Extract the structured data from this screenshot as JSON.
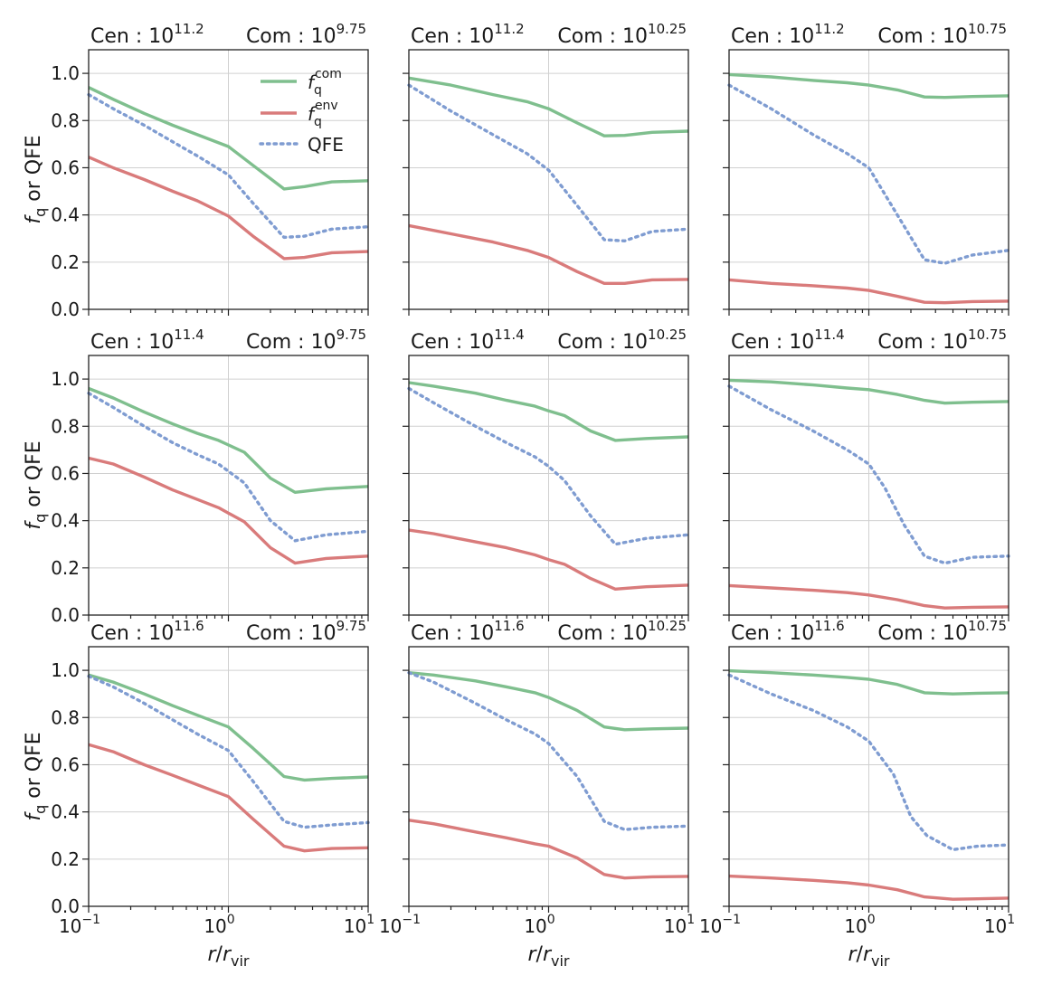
{
  "chart_data": {
    "type": "line",
    "title": "",
    "xlabel": "r/r_vir",
    "ylabel": "f_q or QFE",
    "xscale": "log",
    "xlim": [
      0.1,
      10
    ],
    "ylim": [
      0.0,
      1.1
    ],
    "x_tick_labels": [
      "10",
      "10",
      "10"
    ],
    "x_tick_exponents": [
      "−1",
      "0",
      "1"
    ],
    "y_tick_labels": [
      "0.0",
      "0.2",
      "0.4",
      "0.6",
      "0.8",
      "1.0"
    ],
    "grid": true,
    "legend_position": "top-right of first panel",
    "legend": [
      {
        "key": "fcom",
        "base": "f",
        "sub": "q",
        "sup": "com"
      },
      {
        "key": "fenv",
        "base": "f",
        "sub": "q",
        "sup": "env"
      },
      {
        "key": "qfe",
        "label": "QFE"
      }
    ],
    "series_styles": {
      "fcom": {
        "color": "#7fbf8e",
        "dash": "solid"
      },
      "fenv": {
        "color": "#d97b7b",
        "dash": "solid"
      },
      "qfe": {
        "color": "#7f9cd1",
        "dash": "dotted"
      }
    },
    "panels": [
      {
        "cen_text": "Cen : 10",
        "cen_exp": "11.2",
        "com_text": "Com : 10",
        "com_exp": "9.75",
        "series": {
          "fcom": {
            "x": [
              0.1,
              0.15,
              0.25,
              0.4,
              0.6,
              1.0,
              1.5,
              2.5,
              3.5,
              5.5,
              10
            ],
            "y": [
              0.94,
              0.89,
              0.83,
              0.78,
              0.74,
              0.69,
              0.61,
              0.51,
              0.52,
              0.54,
              0.545
            ]
          },
          "fenv": {
            "x": [
              0.1,
              0.15,
              0.25,
              0.4,
              0.6,
              1.0,
              1.5,
              2.5,
              3.5,
              5.5,
              10
            ],
            "y": [
              0.645,
              0.6,
              0.55,
              0.5,
              0.46,
              0.395,
              0.31,
              0.215,
              0.22,
              0.24,
              0.245
            ]
          },
          "qfe": {
            "x": [
              0.1,
              0.15,
              0.25,
              0.4,
              0.6,
              1.0,
              1.5,
              2.5,
              3.5,
              5.5,
              10
            ],
            "y": [
              0.91,
              0.85,
              0.78,
              0.71,
              0.65,
              0.57,
              0.45,
              0.305,
              0.31,
              0.34,
              0.35
            ]
          }
        }
      },
      {
        "cen_text": "Cen : 10",
        "cen_exp": "11.2",
        "com_text": "Com : 10",
        "com_exp": "10.25",
        "series": {
          "fcom": {
            "x": [
              0.1,
              0.2,
              0.4,
              0.7,
              1.0,
              1.6,
              2.5,
              3.5,
              5.5,
              10
            ],
            "y": [
              0.98,
              0.95,
              0.91,
              0.88,
              0.85,
              0.79,
              0.735,
              0.737,
              0.75,
              0.755
            ]
          },
          "fenv": {
            "x": [
              0.1,
              0.2,
              0.4,
              0.7,
              1.0,
              1.6,
              2.5,
              3.5,
              5.5,
              10
            ],
            "y": [
              0.355,
              0.32,
              0.285,
              0.25,
              0.22,
              0.16,
              0.11,
              0.11,
              0.125,
              0.127
            ]
          },
          "qfe": {
            "x": [
              0.1,
              0.2,
              0.4,
              0.7,
              1.0,
              1.6,
              2.5,
              3.5,
              5.5,
              10
            ],
            "y": [
              0.95,
              0.84,
              0.74,
              0.66,
              0.59,
              0.44,
              0.295,
              0.29,
              0.33,
              0.34
            ]
          }
        }
      },
      {
        "cen_text": "Cen : 10",
        "cen_exp": "11.2",
        "com_text": "Com : 10",
        "com_exp": "10.75",
        "series": {
          "fcom": {
            "x": [
              0.1,
              0.2,
              0.4,
              0.7,
              1.0,
              1.6,
              2.5,
              3.5,
              5.5,
              10
            ],
            "y": [
              0.995,
              0.985,
              0.97,
              0.96,
              0.95,
              0.93,
              0.9,
              0.898,
              0.902,
              0.905
            ]
          },
          "fenv": {
            "x": [
              0.1,
              0.2,
              0.4,
              0.7,
              1.0,
              1.6,
              2.5,
              3.5,
              5.5,
              10
            ],
            "y": [
              0.125,
              0.11,
              0.1,
              0.09,
              0.08,
              0.055,
              0.03,
              0.028,
              0.033,
              0.035
            ]
          },
          "qfe": {
            "x": [
              0.1,
              0.2,
              0.4,
              0.7,
              1.0,
              1.6,
              2.5,
              3.5,
              5.5,
              10
            ],
            "y": [
              0.95,
              0.85,
              0.74,
              0.66,
              0.6,
              0.4,
              0.21,
              0.195,
              0.23,
              0.25
            ]
          }
        }
      },
      {
        "cen_text": "Cen : 10",
        "cen_exp": "11.4",
        "com_text": "Com : 10",
        "com_exp": "9.75",
        "series": {
          "fcom": {
            "x": [
              0.1,
              0.15,
              0.25,
              0.4,
              0.6,
              0.85,
              1.3,
              2.0,
              3.0,
              5.0,
              10
            ],
            "y": [
              0.96,
              0.92,
              0.86,
              0.81,
              0.77,
              0.74,
              0.69,
              0.58,
              0.52,
              0.535,
              0.545
            ]
          },
          "fenv": {
            "x": [
              0.1,
              0.15,
              0.25,
              0.4,
              0.6,
              0.85,
              1.3,
              2.0,
              3.0,
              5.0,
              10
            ],
            "y": [
              0.665,
              0.64,
              0.585,
              0.53,
              0.49,
              0.455,
              0.395,
              0.285,
              0.22,
              0.24,
              0.25
            ]
          },
          "qfe": {
            "x": [
              0.1,
              0.15,
              0.25,
              0.4,
              0.6,
              0.85,
              1.3,
              2.0,
              3.0,
              5.0,
              10
            ],
            "y": [
              0.94,
              0.88,
              0.8,
              0.73,
              0.68,
              0.64,
              0.56,
              0.4,
              0.315,
              0.34,
              0.355
            ]
          }
        }
      },
      {
        "cen_text": "Cen : 10",
        "cen_exp": "11.4",
        "com_text": "Com : 10",
        "com_exp": "10.25",
        "series": {
          "fcom": {
            "x": [
              0.1,
              0.15,
              0.3,
              0.5,
              0.8,
              1.0,
              1.3,
              2.0,
              3.0,
              5.0,
              10
            ],
            "y": [
              0.985,
              0.97,
              0.94,
              0.91,
              0.885,
              0.865,
              0.845,
              0.78,
              0.74,
              0.748,
              0.755
            ]
          },
          "fenv": {
            "x": [
              0.1,
              0.15,
              0.3,
              0.5,
              0.8,
              1.0,
              1.3,
              2.0,
              3.0,
              5.0,
              10
            ],
            "y": [
              0.36,
              0.345,
              0.31,
              0.285,
              0.255,
              0.235,
              0.215,
              0.155,
              0.11,
              0.12,
              0.127
            ]
          },
          "qfe": {
            "x": [
              0.1,
              0.15,
              0.3,
              0.5,
              0.8,
              1.0,
              1.3,
              2.0,
              3.0,
              5.0,
              10
            ],
            "y": [
              0.96,
              0.9,
              0.8,
              0.73,
              0.67,
              0.63,
              0.57,
              0.42,
              0.3,
              0.325,
              0.34
            ]
          }
        }
      },
      {
        "cen_text": "Cen : 10",
        "cen_exp": "11.4",
        "com_text": "Com : 10",
        "com_exp": "10.75",
        "series": {
          "fcom": {
            "x": [
              0.1,
              0.2,
              0.4,
              0.7,
              1.0,
              1.6,
              2.5,
              3.5,
              5.5,
              10
            ],
            "y": [
              0.995,
              0.988,
              0.975,
              0.962,
              0.955,
              0.935,
              0.91,
              0.898,
              0.902,
              0.905
            ]
          },
          "fenv": {
            "x": [
              0.1,
              0.2,
              0.4,
              0.7,
              1.0,
              1.6,
              2.5,
              3.5,
              5.5,
              10
            ],
            "y": [
              0.125,
              0.115,
              0.105,
              0.095,
              0.085,
              0.065,
              0.04,
              0.03,
              0.033,
              0.035
            ]
          },
          "qfe": {
            "x": [
              0.1,
              0.2,
              0.4,
              0.7,
              1.0,
              1.3,
              1.8,
              2.5,
              3.5,
              5.5,
              10
            ],
            "y": [
              0.97,
              0.87,
              0.78,
              0.7,
              0.64,
              0.54,
              0.38,
              0.25,
              0.22,
              0.245,
              0.25
            ]
          }
        }
      },
      {
        "cen_text": "Cen : 10",
        "cen_exp": "11.6",
        "com_text": "Com : 10",
        "com_exp": "9.75",
        "series": {
          "fcom": {
            "x": [
              0.1,
              0.15,
              0.25,
              0.4,
              0.6,
              1.0,
              1.5,
              2.5,
              3.5,
              5.5,
              10
            ],
            "y": [
              0.98,
              0.95,
              0.9,
              0.85,
              0.81,
              0.76,
              0.67,
              0.55,
              0.535,
              0.542,
              0.548
            ]
          },
          "fenv": {
            "x": [
              0.1,
              0.15,
              0.25,
              0.4,
              0.6,
              1.0,
              1.5,
              2.5,
              3.5,
              5.5,
              10
            ],
            "y": [
              0.685,
              0.655,
              0.6,
              0.555,
              0.515,
              0.465,
              0.37,
              0.255,
              0.235,
              0.245,
              0.248
            ]
          },
          "qfe": {
            "x": [
              0.1,
              0.15,
              0.25,
              0.4,
              0.6,
              1.0,
              1.5,
              2.5,
              3.5,
              5.5,
              10
            ],
            "y": [
              0.975,
              0.93,
              0.86,
              0.79,
              0.73,
              0.66,
              0.53,
              0.36,
              0.335,
              0.345,
              0.355
            ]
          }
        }
      },
      {
        "cen_text": "Cen : 10",
        "cen_exp": "11.6",
        "com_text": "Com : 10",
        "com_exp": "10.25",
        "series": {
          "fcom": {
            "x": [
              0.1,
              0.15,
              0.3,
              0.5,
              0.8,
              1.0,
              1.6,
              2.5,
              3.5,
              5.5,
              10
            ],
            "y": [
              0.99,
              0.98,
              0.955,
              0.93,
              0.905,
              0.885,
              0.83,
              0.76,
              0.748,
              0.752,
              0.755
            ]
          },
          "fenv": {
            "x": [
              0.1,
              0.15,
              0.3,
              0.5,
              0.8,
              1.0,
              1.6,
              2.5,
              3.5,
              5.5,
              10
            ],
            "y": [
              0.365,
              0.35,
              0.315,
              0.29,
              0.265,
              0.255,
              0.205,
              0.135,
              0.12,
              0.125,
              0.127
            ]
          },
          "qfe": {
            "x": [
              0.1,
              0.15,
              0.3,
              0.5,
              0.8,
              1.0,
              1.6,
              2.5,
              3.5,
              5.5,
              10
            ],
            "y": [
              0.99,
              0.95,
              0.86,
              0.79,
              0.73,
              0.69,
              0.55,
              0.36,
              0.325,
              0.335,
              0.34
            ]
          }
        }
      },
      {
        "cen_text": "Cen : 10",
        "cen_exp": "11.6",
        "com_text": "Com : 10",
        "com_exp": "10.75",
        "series": {
          "fcom": {
            "x": [
              0.1,
              0.2,
              0.4,
              0.7,
              1.0,
              1.6,
              2.5,
              4.0,
              6.0,
              10
            ],
            "y": [
              0.998,
              0.99,
              0.98,
              0.97,
              0.962,
              0.94,
              0.905,
              0.9,
              0.903,
              0.905
            ]
          },
          "fenv": {
            "x": [
              0.1,
              0.2,
              0.4,
              0.7,
              1.0,
              1.6,
              2.5,
              4.0,
              6.0,
              10
            ],
            "y": [
              0.128,
              0.12,
              0.11,
              0.1,
              0.09,
              0.07,
              0.04,
              0.03,
              0.032,
              0.035
            ]
          },
          "qfe": {
            "x": [
              0.1,
              0.2,
              0.4,
              0.7,
              1.0,
              1.5,
              2.0,
              2.6,
              4.0,
              6.0,
              10
            ],
            "y": [
              0.98,
              0.9,
              0.83,
              0.76,
              0.7,
              0.56,
              0.38,
              0.3,
              0.24,
              0.255,
              0.26
            ]
          }
        }
      }
    ]
  }
}
